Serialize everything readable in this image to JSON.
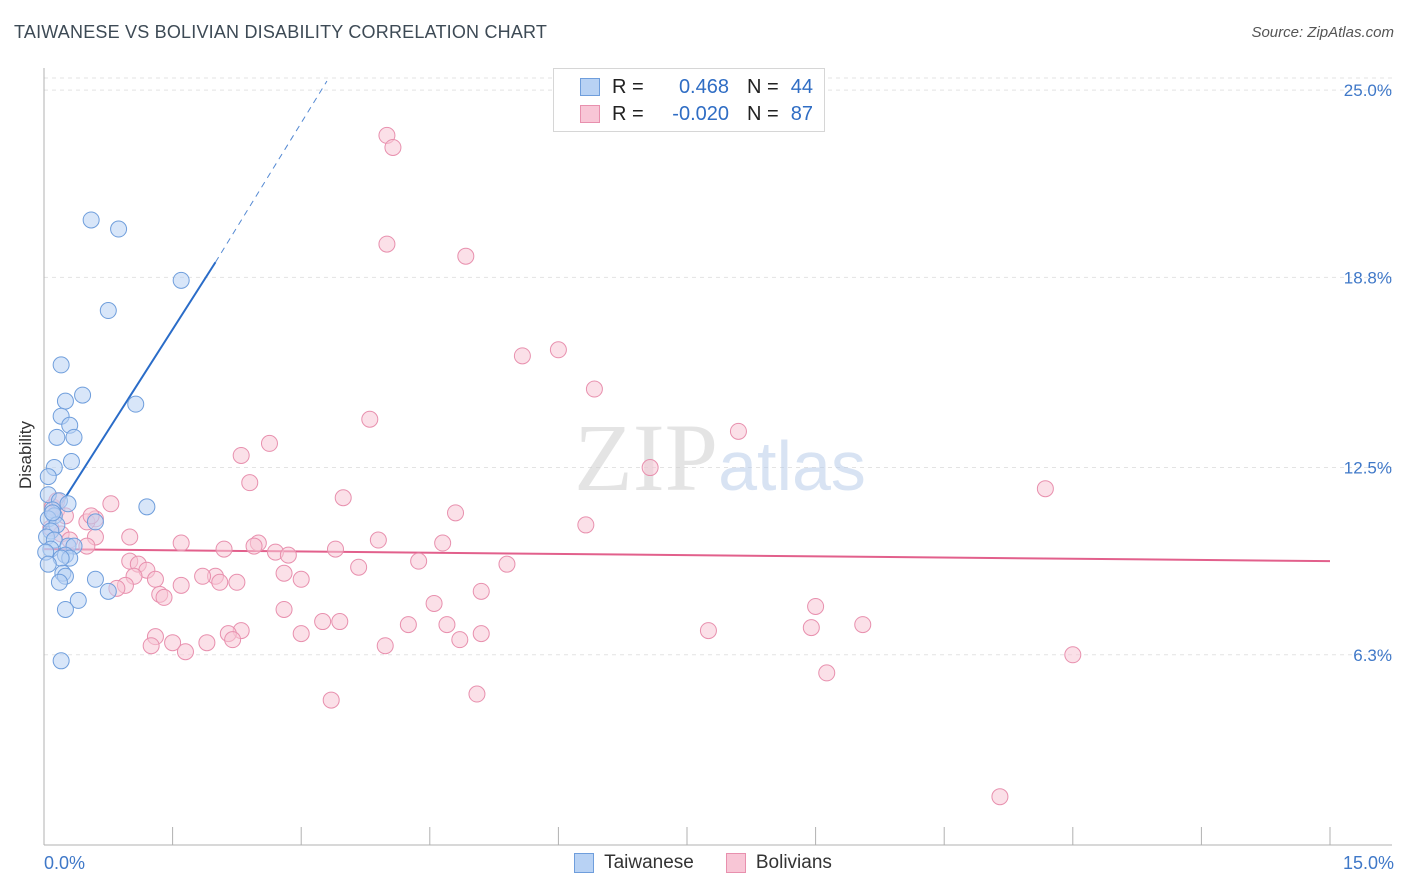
{
  "header": {
    "title": "TAIWANESE VS BOLIVIAN DISABILITY CORRELATION CHART",
    "source": "Source: ZipAtlas.com"
  },
  "legend": {
    "rows": [
      {
        "r_label": "R =",
        "r_value": "0.468",
        "n_label": "N =",
        "n_value": "44"
      },
      {
        "r_label": "R =",
        "r_value": "-0.020",
        "n_label": "N =",
        "n_value": "87"
      }
    ]
  },
  "bottom_legend": [
    "Taiwanese",
    "Bolivians"
  ],
  "colors": {
    "taiwanese_fill": "#b8d2f4",
    "taiwanese_stroke": "#6f9edc",
    "taiwanese_line": "#2a6cc8",
    "bolivian_fill": "#f8c6d6",
    "bolivian_stroke": "#e890ae",
    "bolivian_line": "#e2608c",
    "tick_text": "#3f78c8",
    "grid": "#e3e3e3"
  },
  "chart_data": {
    "type": "scatter",
    "title": "TAIWANESE VS BOLIVIAN DISABILITY CORRELATION CHART",
    "xlabel": "",
    "ylabel": "Disability",
    "xlim": [
      0,
      15
    ],
    "ylim": [
      0,
      25.6
    ],
    "x_tick_labels": [
      "0.0%",
      "15.0%"
    ],
    "y_ticks": [
      6.3,
      12.5,
      18.8,
      25.0
    ],
    "y_tick_labels": [
      "6.3%",
      "12.5%",
      "18.8%",
      "25.0%"
    ],
    "grid": true,
    "watermark": "ZIPatlas",
    "series": [
      {
        "name": "Taiwanese",
        "r": 0.468,
        "n": 44,
        "trend": {
          "x0": 0.0,
          "y0": 10.4,
          "x1": 2.0,
          "y1": 19.3,
          "dash_to_x": 3.3,
          "dash_to_y": 25.3
        },
        "points": [
          [
            0.55,
            20.7
          ],
          [
            0.87,
            20.4
          ],
          [
            1.6,
            18.7
          ],
          [
            0.75,
            17.7
          ],
          [
            0.2,
            15.9
          ],
          [
            0.45,
            14.9
          ],
          [
            0.25,
            14.7
          ],
          [
            1.07,
            14.6
          ],
          [
            0.2,
            14.2
          ],
          [
            0.3,
            13.9
          ],
          [
            0.15,
            13.5
          ],
          [
            0.35,
            13.5
          ],
          [
            0.32,
            12.7
          ],
          [
            0.12,
            12.5
          ],
          [
            0.05,
            12.2
          ],
          [
            0.05,
            11.6
          ],
          [
            0.18,
            11.4
          ],
          [
            0.28,
            11.3
          ],
          [
            1.2,
            11.2
          ],
          [
            0.1,
            11.1
          ],
          [
            0.12,
            10.9
          ],
          [
            0.05,
            10.8
          ],
          [
            0.6,
            10.7
          ],
          [
            0.15,
            10.6
          ],
          [
            0.08,
            10.4
          ],
          [
            0.03,
            10.2
          ],
          [
            0.12,
            10.1
          ],
          [
            0.28,
            9.9
          ],
          [
            0.35,
            9.9
          ],
          [
            0.08,
            9.8
          ],
          [
            0.02,
            9.7
          ],
          [
            0.25,
            9.6
          ],
          [
            0.3,
            9.5
          ],
          [
            0.2,
            9.5
          ],
          [
            0.05,
            9.3
          ],
          [
            0.22,
            9.0
          ],
          [
            0.25,
            8.9
          ],
          [
            0.6,
            8.8
          ],
          [
            0.18,
            8.7
          ],
          [
            0.75,
            8.4
          ],
          [
            0.4,
            8.1
          ],
          [
            0.25,
            7.8
          ],
          [
            0.2,
            6.1
          ],
          [
            0.1,
            11.0
          ]
        ]
      },
      {
        "name": "Bolivians",
        "r": -0.02,
        "n": 87,
        "trend": {
          "x0": 0.0,
          "y0": 9.8,
          "x1": 15.0,
          "y1": 9.4
        },
        "points": [
          [
            4.0,
            23.5
          ],
          [
            4.07,
            23.1
          ],
          [
            4.0,
            19.9
          ],
          [
            4.92,
            19.5
          ],
          [
            5.58,
            16.2
          ],
          [
            6.0,
            16.4
          ],
          [
            6.42,
            15.1
          ],
          [
            3.8,
            14.1
          ],
          [
            8.1,
            13.7
          ],
          [
            2.63,
            13.3
          ],
          [
            2.3,
            12.9
          ],
          [
            7.07,
            12.5
          ],
          [
            2.4,
            12.0
          ],
          [
            11.68,
            11.8
          ],
          [
            3.49,
            11.5
          ],
          [
            0.78,
            11.3
          ],
          [
            0.15,
            11.1
          ],
          [
            4.8,
            11.0
          ],
          [
            0.6,
            10.8
          ],
          [
            0.5,
            10.7
          ],
          [
            6.32,
            10.6
          ],
          [
            0.6,
            10.2
          ],
          [
            1.0,
            10.2
          ],
          [
            3.9,
            10.1
          ],
          [
            4.65,
            10.0
          ],
          [
            1.6,
            10.0
          ],
          [
            2.5,
            10.0
          ],
          [
            2.45,
            9.9
          ],
          [
            2.1,
            9.8
          ],
          [
            3.4,
            9.8
          ],
          [
            2.7,
            9.7
          ],
          [
            2.85,
            9.6
          ],
          [
            4.37,
            9.4
          ],
          [
            1.0,
            9.4
          ],
          [
            5.4,
            9.3
          ],
          [
            1.1,
            9.3
          ],
          [
            3.67,
            9.2
          ],
          [
            1.2,
            9.1
          ],
          [
            2.8,
            9.0
          ],
          [
            2.0,
            8.9
          ],
          [
            1.85,
            8.9
          ],
          [
            1.05,
            8.9
          ],
          [
            1.3,
            8.8
          ],
          [
            3.0,
            8.8
          ],
          [
            2.25,
            8.7
          ],
          [
            2.05,
            8.7
          ],
          [
            0.95,
            8.6
          ],
          [
            1.6,
            8.6
          ],
          [
            0.85,
            8.5
          ],
          [
            5.1,
            8.4
          ],
          [
            1.35,
            8.3
          ],
          [
            1.4,
            8.2
          ],
          [
            4.55,
            8.0
          ],
          [
            9.0,
            7.9
          ],
          [
            2.8,
            7.8
          ],
          [
            3.25,
            7.4
          ],
          [
            3.45,
            7.4
          ],
          [
            4.25,
            7.3
          ],
          [
            4.7,
            7.3
          ],
          [
            9.55,
            7.3
          ],
          [
            8.95,
            7.2
          ],
          [
            7.75,
            7.1
          ],
          [
            2.3,
            7.1
          ],
          [
            2.15,
            7.0
          ],
          [
            3.0,
            7.0
          ],
          [
            5.1,
            7.0
          ],
          [
            1.3,
            6.9
          ],
          [
            4.85,
            6.8
          ],
          [
            2.2,
            6.8
          ],
          [
            1.5,
            6.7
          ],
          [
            1.9,
            6.7
          ],
          [
            3.98,
            6.6
          ],
          [
            1.25,
            6.6
          ],
          [
            1.65,
            6.4
          ],
          [
            12.0,
            6.3
          ],
          [
            9.13,
            5.7
          ],
          [
            5.05,
            5.0
          ],
          [
            3.35,
            4.8
          ],
          [
            11.15,
            1.6
          ],
          [
            0.1,
            11.2
          ],
          [
            0.25,
            10.9
          ],
          [
            0.08,
            10.5
          ],
          [
            0.2,
            10.3
          ],
          [
            0.3,
            10.1
          ],
          [
            0.55,
            10.9
          ],
          [
            0.5,
            9.9
          ],
          [
            0.15,
            11.4
          ]
        ]
      }
    ]
  }
}
